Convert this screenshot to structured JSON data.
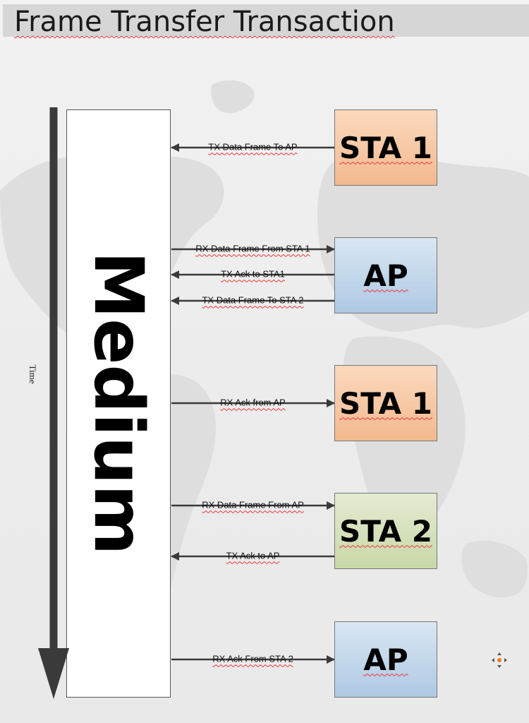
{
  "title": "Frame Transfer Transaction",
  "medium_label": "Medium",
  "time_label": "Time",
  "entities": [
    {
      "label": "STA 1",
      "kind": "sta1"
    },
    {
      "label": "AP",
      "kind": "ap"
    },
    {
      "label": "STA 1",
      "kind": "sta1"
    },
    {
      "label": "STA 2",
      "kind": "sta2"
    },
    {
      "label": "AP",
      "kind": "ap"
    }
  ],
  "messages": [
    {
      "label": "TX Data Frame To AP",
      "direction": "to-medium"
    },
    {
      "label": "RX Data Frame From STA 1",
      "direction": "to-entity"
    },
    {
      "label": "TX Ack to STA1",
      "direction": "to-medium"
    },
    {
      "label": "TX Data Frame To STA 2",
      "direction": "to-medium"
    },
    {
      "label": "RX Ack from AP",
      "direction": "to-entity"
    },
    {
      "label": "RX Data Frame From AP",
      "direction": "to-entity"
    },
    {
      "label": "TX Ack to AP",
      "direction": "to-medium"
    },
    {
      "label": "RX Ack From STA 2",
      "direction": "to-entity"
    }
  ],
  "colors": {
    "sta1": "#f2b98e",
    "ap": "#aec9e4",
    "sta2": "#c9d8a8",
    "arrow": "#3a3a3a",
    "spellcheck": "#e33"
  },
  "icons": {
    "corner": "move-cursor-icon",
    "time_arrow": "down-arrow-icon"
  }
}
